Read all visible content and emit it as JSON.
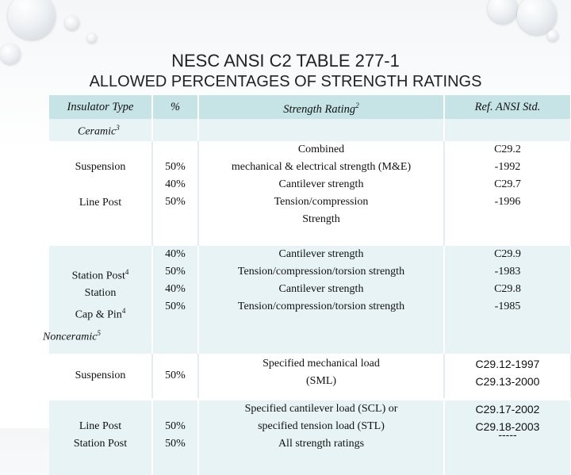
{
  "title": {
    "line1": "NESC ANSI C2 TABLE 277-1",
    "line2": "ALLOWED PERCENTAGES OF STRENGTH RATINGS"
  },
  "header": {
    "insulator_type": "Insulator Type",
    "percent": "%",
    "strength_rating": "Strength Rating",
    "strength_rating_note": "2",
    "ref_std": "Ref. ANSI Std."
  },
  "ceramic": {
    "label": "Ceramic",
    "note": "3",
    "suspension": "Suspension",
    "line_post": "Line Post",
    "pct_a": [
      "50%",
      "40%",
      "50%"
    ],
    "strength_a": [
      "Combined",
      "mechanical & electrical strength (M&E)",
      "Cantilever strength",
      "Tension/compression",
      "Strength"
    ],
    "ref_a": [
      "C29.2",
      "-1992",
      "C29.7",
      "-1996"
    ],
    "station_post": "Station Post",
    "station_post_note": "4",
    "station": "Station",
    "cap_pin": "Cap & Pin",
    "cap_pin_note": "4",
    "pct_b": [
      "40%",
      "50%",
      "40%",
      "50%"
    ],
    "strength_b": [
      "Cantilever strength",
      "Tension/compression/torsion strength",
      "Cantilever strength",
      "Tension/compression/torsion strength"
    ],
    "ref_b": [
      "C29.9",
      "-1983",
      "C29.8",
      "-1985"
    ]
  },
  "nonceramic": {
    "label": "Nonceramic",
    "note": "5",
    "suspension": "Suspension",
    "pct_susp": "50%",
    "strength_susp": [
      "Specified mechanical load",
      "(SML)"
    ],
    "ref_susp": [
      "C29.12-1997",
      "C29.13-2000"
    ],
    "line_post": "Line Post",
    "station_post": "Station Post",
    "pct_post": [
      "50%",
      "50%"
    ],
    "strength_post": [
      "Specified cantilever load (SCL) or",
      "specified tension load (STL)",
      "All strength ratings"
    ],
    "ref_post": [
      "C29.17-2002",
      "C29.18-2003",
      "-----"
    ]
  }
}
